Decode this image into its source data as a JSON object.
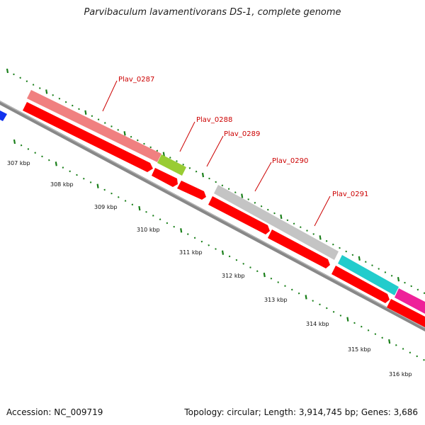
{
  "title": "Parvibaculum lavamentivorans DS-1, complete genome",
  "footer": {
    "accession": "Accession: NC_009719",
    "topology": "Topology: circular; Length: 3,914,745 bp; Genes: 3,686"
  },
  "ticks": [
    "307 kbp",
    "308 kbp",
    "309 kbp",
    "310 kbp",
    "311 kbp",
    "312 kbp",
    "313 kbp",
    "314 kbp",
    "315 kbp",
    "316 kbp"
  ],
  "gene_labels": [
    "Plav_0287",
    "Plav_0288",
    "Plav_0289",
    "Plav_0290",
    "Plav_0291"
  ],
  "colors": {
    "cds": "#ff0000",
    "label": "#cc0000",
    "backbone": "#888888",
    "tick": "#1a7f1a",
    "cog_0287": "#f08080",
    "cog_0288": "#99cc33",
    "cog_0290": "#bbbbbb",
    "cog_next_1": "#22cccc",
    "cog_next_2": "#ee2299",
    "cog_prev": "#1133ee"
  }
}
